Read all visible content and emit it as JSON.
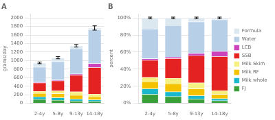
{
  "chart_data": [
    {
      "type": "bar",
      "title": "A",
      "stacked": true,
      "grid": true,
      "categories": [
        "2-4y",
        "5-8y",
        "9-13y",
        "14-18y"
      ],
      "ylabel": "grams/day",
      "ylim": [
        0,
        2100
      ],
      "yticks": [
        0,
        200,
        400,
        600,
        800,
        1000,
        1200,
        1400,
        1600,
        1800,
        2000
      ],
      "series": [
        {
          "name": "FJ",
          "color": "#3a9e3a",
          "values": [
            95,
            75,
            55,
            45
          ]
        },
        {
          "name": "Milk whole",
          "color": "#1ab8cc",
          "values": [
            60,
            55,
            45,
            35
          ]
        },
        {
          "name": "Milk RF",
          "color": "#f5c200",
          "values": [
            80,
            95,
            90,
            75
          ]
        },
        {
          "name": "Milk Skim",
          "color": "#f5f080",
          "values": [
            50,
            65,
            80,
            65
          ]
        },
        {
          "name": "SSB",
          "color": "#e52222",
          "values": [
            195,
            240,
            390,
            620
          ]
        },
        {
          "name": "LCB",
          "color": "#cc44bb",
          "values": [
            18,
            18,
            28,
            95
          ]
        },
        {
          "name": "Water",
          "color": "#b8cfe8",
          "values": [
            350,
            430,
            590,
            790
          ]
        },
        {
          "name": "Formula",
          "color": "#dce8f0",
          "values": [
            100,
            90,
            70,
            40
          ]
        }
      ],
      "error": [
        20,
        25,
        30,
        50
      ]
    },
    {
      "type": "bar",
      "title": "B",
      "stacked": true,
      "grid": true,
      "legend": "right",
      "categories": [
        "2-4y",
        "5-8y",
        "9-13y",
        "14-18y"
      ],
      "ylabel": "percent",
      "ylim": [
        0,
        105
      ],
      "yticks": [
        {
          "value": 0,
          "label": "0%"
        },
        {
          "value": 20,
          "label": "20%"
        },
        {
          "value": 40,
          "label": "40%"
        },
        {
          "value": 60,
          "label": "60%"
        },
        {
          "value": 80,
          "label": "80%"
        },
        {
          "value": 100,
          "label": "100%"
        }
      ],
      "series": [
        {
          "name": "FJ",
          "color": "#3a9e3a",
          "values": [
            10.5,
            8.0,
            5.0,
            3.0
          ]
        },
        {
          "name": "Milk whole",
          "color": "#1ab8cc",
          "values": [
            6.5,
            5.5,
            4.0,
            2.5
          ]
        },
        {
          "name": "Milk RF",
          "color": "#f5c200",
          "values": [
            8.5,
            9.5,
            8.0,
            5.0
          ]
        },
        {
          "name": "Milk Skim",
          "color": "#f5f080",
          "values": [
            5.0,
            6.5,
            7.0,
            4.5
          ]
        },
        {
          "name": "SSB",
          "color": "#e52222",
          "values": [
            20.0,
            23.0,
            32.0,
            40.0
          ]
        },
        {
          "name": "LCB",
          "color": "#cc44bb",
          "values": [
            1.8,
            1.8,
            2.5,
            6.0
          ]
        },
        {
          "name": "Water",
          "color": "#b8cfe8",
          "values": [
            35.0,
            37.0,
            37.0,
            37.0
          ]
        },
        {
          "name": "Formula",
          "color": "#dce8f0",
          "values": [
            12.7,
            8.7,
            4.5,
            2.0
          ]
        }
      ],
      "error": [
        1,
        1,
        1,
        1
      ]
    }
  ]
}
